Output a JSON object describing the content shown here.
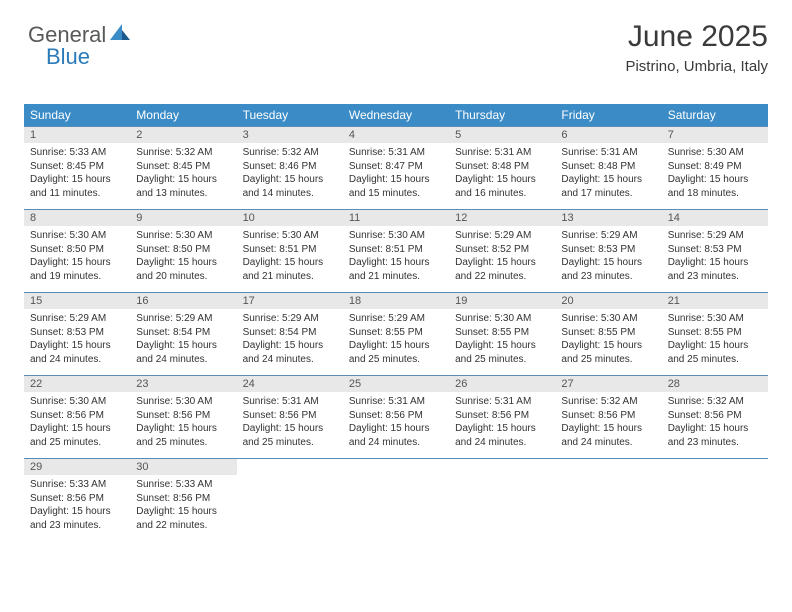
{
  "logo": {
    "text_general": "General",
    "text_blue": "Blue",
    "icon_color_dark": "#1c5a8e",
    "icon_color_light": "#3b8bc7"
  },
  "header": {
    "title": "June 2025",
    "location": "Pistrino, Umbria, Italy"
  },
  "colors": {
    "header_bg": "#3b8bc7",
    "header_text": "#ffffff",
    "daynum_bg": "#e8e8e8",
    "daynum_text": "#555555",
    "body_text": "#333333",
    "row_border": "#5a8db5",
    "page_bg": "#ffffff"
  },
  "day_names": [
    "Sunday",
    "Monday",
    "Tuesday",
    "Wednesday",
    "Thursday",
    "Friday",
    "Saturday"
  ],
  "weeks": [
    [
      {
        "n": "1",
        "sr": "Sunrise: 5:33 AM",
        "ss": "Sunset: 8:45 PM",
        "d1": "Daylight: 15 hours",
        "d2": "and 11 minutes."
      },
      {
        "n": "2",
        "sr": "Sunrise: 5:32 AM",
        "ss": "Sunset: 8:45 PM",
        "d1": "Daylight: 15 hours",
        "d2": "and 13 minutes."
      },
      {
        "n": "3",
        "sr": "Sunrise: 5:32 AM",
        "ss": "Sunset: 8:46 PM",
        "d1": "Daylight: 15 hours",
        "d2": "and 14 minutes."
      },
      {
        "n": "4",
        "sr": "Sunrise: 5:31 AM",
        "ss": "Sunset: 8:47 PM",
        "d1": "Daylight: 15 hours",
        "d2": "and 15 minutes."
      },
      {
        "n": "5",
        "sr": "Sunrise: 5:31 AM",
        "ss": "Sunset: 8:48 PM",
        "d1": "Daylight: 15 hours",
        "d2": "and 16 minutes."
      },
      {
        "n": "6",
        "sr": "Sunrise: 5:31 AM",
        "ss": "Sunset: 8:48 PM",
        "d1": "Daylight: 15 hours",
        "d2": "and 17 minutes."
      },
      {
        "n": "7",
        "sr": "Sunrise: 5:30 AM",
        "ss": "Sunset: 8:49 PM",
        "d1": "Daylight: 15 hours",
        "d2": "and 18 minutes."
      }
    ],
    [
      {
        "n": "8",
        "sr": "Sunrise: 5:30 AM",
        "ss": "Sunset: 8:50 PM",
        "d1": "Daylight: 15 hours",
        "d2": "and 19 minutes."
      },
      {
        "n": "9",
        "sr": "Sunrise: 5:30 AM",
        "ss": "Sunset: 8:50 PM",
        "d1": "Daylight: 15 hours",
        "d2": "and 20 minutes."
      },
      {
        "n": "10",
        "sr": "Sunrise: 5:30 AM",
        "ss": "Sunset: 8:51 PM",
        "d1": "Daylight: 15 hours",
        "d2": "and 21 minutes."
      },
      {
        "n": "11",
        "sr": "Sunrise: 5:30 AM",
        "ss": "Sunset: 8:51 PM",
        "d1": "Daylight: 15 hours",
        "d2": "and 21 minutes."
      },
      {
        "n": "12",
        "sr": "Sunrise: 5:29 AM",
        "ss": "Sunset: 8:52 PM",
        "d1": "Daylight: 15 hours",
        "d2": "and 22 minutes."
      },
      {
        "n": "13",
        "sr": "Sunrise: 5:29 AM",
        "ss": "Sunset: 8:53 PM",
        "d1": "Daylight: 15 hours",
        "d2": "and 23 minutes."
      },
      {
        "n": "14",
        "sr": "Sunrise: 5:29 AM",
        "ss": "Sunset: 8:53 PM",
        "d1": "Daylight: 15 hours",
        "d2": "and 23 minutes."
      }
    ],
    [
      {
        "n": "15",
        "sr": "Sunrise: 5:29 AM",
        "ss": "Sunset: 8:53 PM",
        "d1": "Daylight: 15 hours",
        "d2": "and 24 minutes."
      },
      {
        "n": "16",
        "sr": "Sunrise: 5:29 AM",
        "ss": "Sunset: 8:54 PM",
        "d1": "Daylight: 15 hours",
        "d2": "and 24 minutes."
      },
      {
        "n": "17",
        "sr": "Sunrise: 5:29 AM",
        "ss": "Sunset: 8:54 PM",
        "d1": "Daylight: 15 hours",
        "d2": "and 24 minutes."
      },
      {
        "n": "18",
        "sr": "Sunrise: 5:29 AM",
        "ss": "Sunset: 8:55 PM",
        "d1": "Daylight: 15 hours",
        "d2": "and 25 minutes."
      },
      {
        "n": "19",
        "sr": "Sunrise: 5:30 AM",
        "ss": "Sunset: 8:55 PM",
        "d1": "Daylight: 15 hours",
        "d2": "and 25 minutes."
      },
      {
        "n": "20",
        "sr": "Sunrise: 5:30 AM",
        "ss": "Sunset: 8:55 PM",
        "d1": "Daylight: 15 hours",
        "d2": "and 25 minutes."
      },
      {
        "n": "21",
        "sr": "Sunrise: 5:30 AM",
        "ss": "Sunset: 8:55 PM",
        "d1": "Daylight: 15 hours",
        "d2": "and 25 minutes."
      }
    ],
    [
      {
        "n": "22",
        "sr": "Sunrise: 5:30 AM",
        "ss": "Sunset: 8:56 PM",
        "d1": "Daylight: 15 hours",
        "d2": "and 25 minutes."
      },
      {
        "n": "23",
        "sr": "Sunrise: 5:30 AM",
        "ss": "Sunset: 8:56 PM",
        "d1": "Daylight: 15 hours",
        "d2": "and 25 minutes."
      },
      {
        "n": "24",
        "sr": "Sunrise: 5:31 AM",
        "ss": "Sunset: 8:56 PM",
        "d1": "Daylight: 15 hours",
        "d2": "and 25 minutes."
      },
      {
        "n": "25",
        "sr": "Sunrise: 5:31 AM",
        "ss": "Sunset: 8:56 PM",
        "d1": "Daylight: 15 hours",
        "d2": "and 24 minutes."
      },
      {
        "n": "26",
        "sr": "Sunrise: 5:31 AM",
        "ss": "Sunset: 8:56 PM",
        "d1": "Daylight: 15 hours",
        "d2": "and 24 minutes."
      },
      {
        "n": "27",
        "sr": "Sunrise: 5:32 AM",
        "ss": "Sunset: 8:56 PM",
        "d1": "Daylight: 15 hours",
        "d2": "and 24 minutes."
      },
      {
        "n": "28",
        "sr": "Sunrise: 5:32 AM",
        "ss": "Sunset: 8:56 PM",
        "d1": "Daylight: 15 hours",
        "d2": "and 23 minutes."
      }
    ],
    [
      {
        "n": "29",
        "sr": "Sunrise: 5:33 AM",
        "ss": "Sunset: 8:56 PM",
        "d1": "Daylight: 15 hours",
        "d2": "and 23 minutes."
      },
      {
        "n": "30",
        "sr": "Sunrise: 5:33 AM",
        "ss": "Sunset: 8:56 PM",
        "d1": "Daylight: 15 hours",
        "d2": "and 22 minutes."
      },
      {
        "empty": true
      },
      {
        "empty": true
      },
      {
        "empty": true
      },
      {
        "empty": true
      },
      {
        "empty": true
      }
    ]
  ]
}
